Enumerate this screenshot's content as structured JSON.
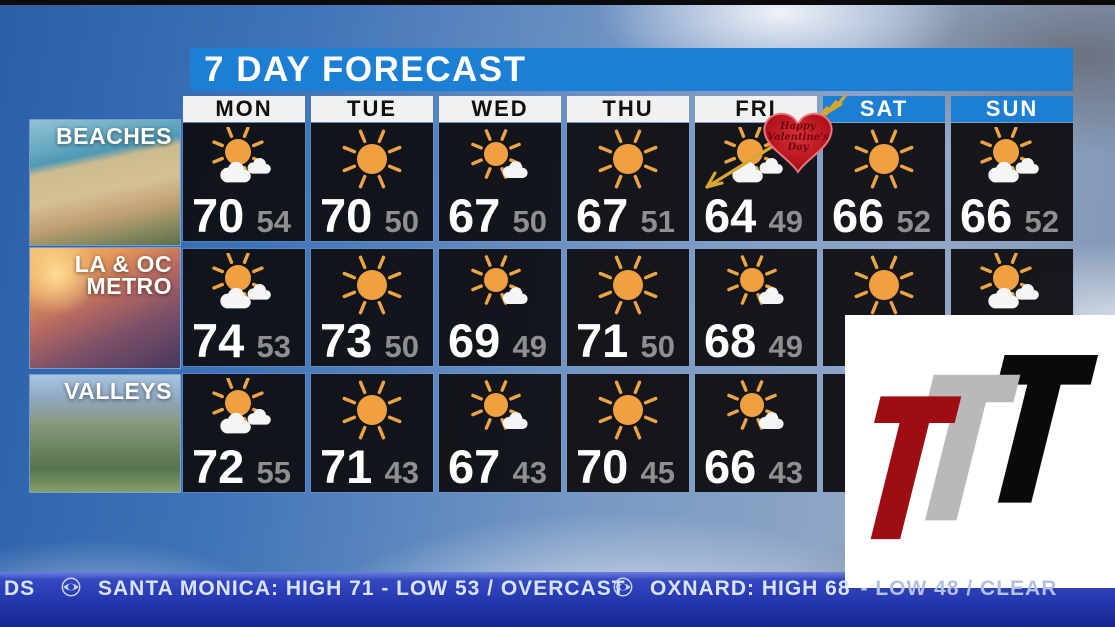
{
  "title": "7 DAY FORECAST",
  "days": [
    "MON",
    "TUE",
    "WED",
    "THU",
    "FRI",
    "SAT",
    "SUN"
  ],
  "regions": [
    {
      "label_line1": "BEACHES",
      "label_line2": "",
      "forecasts": [
        {
          "icon": "partly-cloudy",
          "high": "70",
          "low": "54"
        },
        {
          "icon": "sunny",
          "high": "70",
          "low": "50"
        },
        {
          "icon": "mostly-sunny",
          "high": "67",
          "low": "50"
        },
        {
          "icon": "sunny",
          "high": "67",
          "low": "51"
        },
        {
          "icon": "partly-cloudy",
          "high": "64",
          "low": "49"
        },
        {
          "icon": "sunny",
          "high": "66",
          "low": "52"
        },
        {
          "icon": "partly-cloudy",
          "high": "66",
          "low": "52"
        }
      ]
    },
    {
      "label_line1": "LA & OC",
      "label_line2": "METRO",
      "forecasts": [
        {
          "icon": "partly-cloudy",
          "high": "74",
          "low": "53"
        },
        {
          "icon": "sunny",
          "high": "73",
          "low": "50"
        },
        {
          "icon": "mostly-sunny",
          "high": "69",
          "low": "49"
        },
        {
          "icon": "sunny",
          "high": "71",
          "low": "50"
        },
        {
          "icon": "mostly-sunny",
          "high": "68",
          "low": "49"
        },
        {
          "icon": "sunny",
          "high": "",
          "low": ""
        },
        {
          "icon": "partly-cloudy",
          "high": "",
          "low": ""
        }
      ]
    },
    {
      "label_line1": "VALLEYS",
      "label_line2": "",
      "forecasts": [
        {
          "icon": "partly-cloudy",
          "high": "72",
          "low": "55"
        },
        {
          "icon": "sunny",
          "high": "71",
          "low": "43"
        },
        {
          "icon": "mostly-sunny",
          "high": "67",
          "low": "43"
        },
        {
          "icon": "sunny",
          "high": "70",
          "low": "45"
        },
        {
          "icon": "mostly-sunny",
          "high": "66",
          "low": "43"
        },
        {
          "icon": "",
          "high": "",
          "low": ""
        },
        {
          "icon": "",
          "high": "",
          "low": ""
        }
      ]
    }
  ],
  "sticker": {
    "line1": "Happy",
    "line2": "Valentine's",
    "line3": "Day"
  },
  "ticker": {
    "left_partial": "DS",
    "station1": "SANTA MONICA: HIGH 71 - LOW 53 / OVERCAST",
    "station2": "OXNARD: HIGH 68",
    "station2_obscured": "- LOW 48 / CLEAR"
  },
  "icons": {
    "ticker_bullet": "cbs-eye-icon",
    "weather_set": [
      "sunny",
      "mostly-sunny",
      "partly-cloudy"
    ],
    "sticker_arrow": "cupid-arrow-icon"
  },
  "colors": {
    "title_bar": "#1d7fd4",
    "weekend_header": "#1d7fd4",
    "sun": "#f0a040",
    "temp_high": "#ffffff",
    "temp_low": "#8f8f8f",
    "ticker_blue": "#2638ae",
    "logo_red": "#9e0d11",
    "logo_gray": "#b9b9b9",
    "logo_black": "#0a0a0a"
  }
}
